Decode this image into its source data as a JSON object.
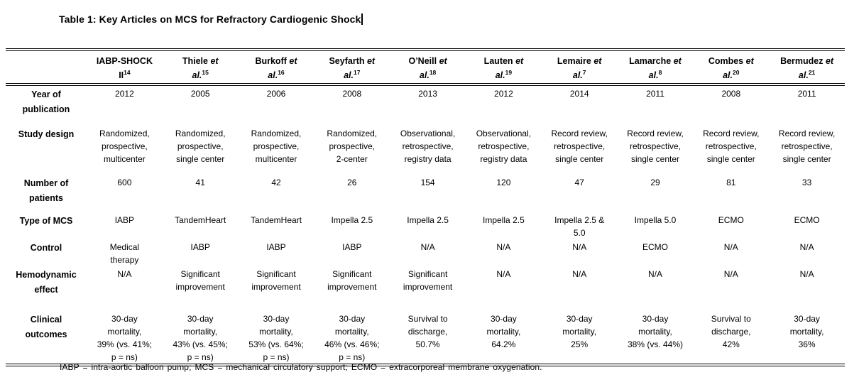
{
  "title": "Table 1: Key Articles on MCS for Refractory Cardiogenic Shock",
  "table": {
    "columns": [
      {
        "top": "IABP-SHOCK",
        "top_italic": "",
        "bottom": "II",
        "bottom_italic": "",
        "ref": "14"
      },
      {
        "top": "Thiele",
        "top_italic": "et",
        "bottom": "",
        "bottom_italic": "al.",
        "ref": "15"
      },
      {
        "top": "Burkoff",
        "top_italic": "et",
        "bottom": "",
        "bottom_italic": "al.",
        "ref": "16"
      },
      {
        "top": "Seyfarth",
        "top_italic": "et",
        "bottom": "",
        "bottom_italic": "al.",
        "ref": "17"
      },
      {
        "top": "O’Neill",
        "top_italic": "et",
        "bottom": "",
        "bottom_italic": "al.",
        "ref": "18"
      },
      {
        "top": "Lauten",
        "top_italic": "et",
        "bottom": "",
        "bottom_italic": "al.",
        "ref": "19"
      },
      {
        "top": "Lemaire",
        "top_italic": "et",
        "bottom": "",
        "bottom_italic": "al.",
        "ref": "7"
      },
      {
        "top": "Lamarche",
        "top_italic": "et",
        "bottom": "",
        "bottom_italic": "al.",
        "ref": "8"
      },
      {
        "top": "Combes",
        "top_italic": "et",
        "bottom": "",
        "bottom_italic": "al.",
        "ref": "20"
      },
      {
        "top": "Bermudez",
        "top_italic": "et",
        "bottom": "",
        "bottom_italic": "al.",
        "ref": "21"
      }
    ],
    "rows": [
      {
        "label": "Year of\npublication",
        "values": [
          "2012",
          "2005",
          "2006",
          "2008",
          "2013",
          "2012",
          "2014",
          "2011",
          "2008",
          "2011"
        ]
      },
      {
        "label": "Study design",
        "values": [
          "Randomized,\nprospective,\nmulticenter",
          "Randomized,\nprospective,\nsingle center",
          "Randomized,\nprospective,\nmulticenter",
          "Randomized,\nprospective,\n2-center",
          "Observational,\nretrospective,\nregistry data",
          "Observational,\nretrospective,\nregistry data",
          "Record review,\nretrospective,\nsingle center",
          "Record review,\nretrospective,\nsingle center",
          "Record review,\nretrospective,\nsingle center",
          "Record review,\nretrospective,\nsingle center"
        ]
      },
      {
        "label": "Number of\npatients",
        "values": [
          "600",
          "41",
          "42",
          "26",
          "154",
          "120",
          "47",
          "29",
          "81",
          "33"
        ]
      },
      {
        "label": "Type of MCS",
        "values": [
          "IABP",
          "TandemHeart",
          "TandemHeart",
          "Impella 2.5",
          "Impella 2.5",
          "Impella 2.5",
          "Impella 2.5 &\n5.0",
          "Impella 5.0",
          "ECMO",
          "ECMO"
        ]
      },
      {
        "label": "Control",
        "values": [
          "Medical\ntherapy",
          "IABP",
          "IABP",
          "IABP",
          "N/A",
          "N/A",
          "N/A",
          "ECMO",
          "N/A",
          "N/A"
        ]
      },
      {
        "label": "Hemodynamic\neffect",
        "values": [
          "N/A",
          "Significant\nimprovement",
          "Significant\nimprovement",
          "Significant\nimprovement",
          "Significant\nimprovement",
          "N/A",
          "N/A",
          "N/A",
          "N/A",
          "N/A"
        ]
      },
      {
        "label": "Clinical\noutcomes",
        "values": [
          "30-day\nmortality,\n39% (vs. 41%;\np = ns)",
          "30-day\nmortality,\n43% (vs. 45%;\np = ns)",
          "30-day\nmortality,\n53% (vs. 64%;\np = ns)",
          "30-day\nmortality,\n46% (vs. 46%;\np = ns)",
          "Survival to\ndischarge,\n50.7%",
          "30-day\nmortality,\n64.2%",
          "30-day\nmortality,\n25%",
          "30-day\nmortality,\n38% (vs. 44%)",
          "Survival to\ndischarge,\n42%",
          "30-day\nmortality,\n36%"
        ]
      }
    ]
  },
  "footnote": "IABP = intra-aortic balloon pump; MCS = mechanical circulatory support; ECMO = extracorporeal membrane oxygenation.",
  "colors": {
    "text": "#000000",
    "background": "#ffffff",
    "rule": "#000000"
  }
}
